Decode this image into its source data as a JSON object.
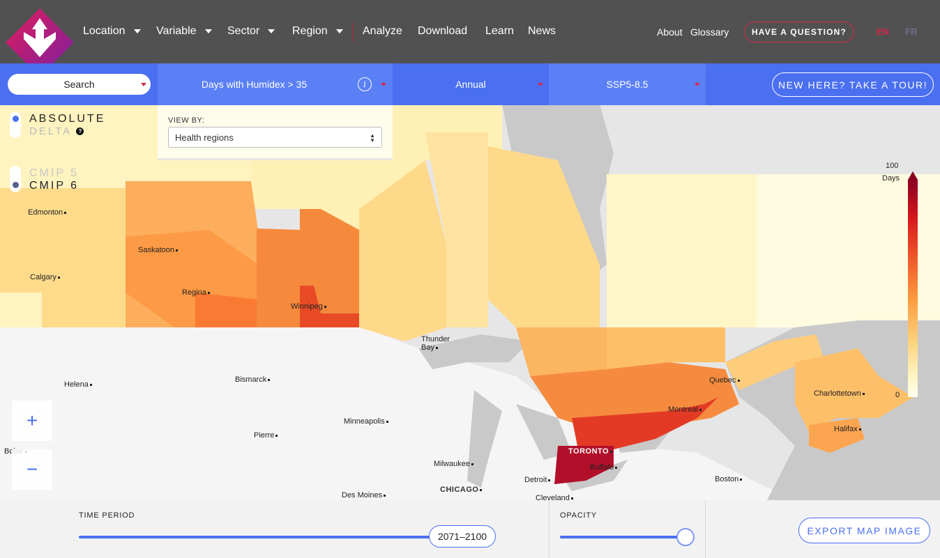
{
  "nav": {
    "items": [
      {
        "label": "Location",
        "dropdown": true
      },
      {
        "label": "Variable",
        "dropdown": true
      },
      {
        "label": "Sector",
        "dropdown": true
      },
      {
        "label": "Region",
        "dropdown": true
      },
      {
        "label": "Analyze",
        "dropdown": false
      },
      {
        "label": "Download",
        "dropdown": false
      },
      {
        "label": "Learn",
        "dropdown": false
      },
      {
        "label": "News",
        "dropdown": false
      }
    ],
    "about": "About",
    "glossary": "Glossary",
    "question_button": "HAVE A QUESTION?",
    "lang_en": "EN",
    "lang_fr": "FR"
  },
  "controls": {
    "search": "Search",
    "variable": "Days with Humidex > 35",
    "frequency": "Annual",
    "scenario": "SSP5-8.5",
    "tour_button": "NEW HERE? TAKE A TOUR!"
  },
  "toggles": {
    "absolute": "ABSOLUTE",
    "delta": "DELTA",
    "cmip5": "CMIP 5",
    "cmip6": "CMIP 6",
    "help_icon": "?"
  },
  "viewby": {
    "label": "VIEW BY:",
    "selected": "Health regions"
  },
  "legend": {
    "max": "100",
    "unit": "Days",
    "min": "0"
  },
  "zoom": {
    "in": "+",
    "out": "−"
  },
  "cities": [
    {
      "name": "Edmonton"
    },
    {
      "name": "Saskatoon"
    },
    {
      "name": "Calgary"
    },
    {
      "name": "Regina"
    },
    {
      "name": "Winnipeg"
    },
    {
      "name": "Thunder Bay"
    },
    {
      "name": "Helena"
    },
    {
      "name": "Bismarck"
    },
    {
      "name": "Pierre"
    },
    {
      "name": "Minneapolis"
    },
    {
      "name": "Milwaukee"
    },
    {
      "name": "Des Moines"
    },
    {
      "name": "CHICAGO"
    },
    {
      "name": "Detroit"
    },
    {
      "name": "Cleveland"
    },
    {
      "name": "TORONTO"
    },
    {
      "name": "Buffalo"
    },
    {
      "name": "Montreal"
    },
    {
      "name": "Quebec"
    },
    {
      "name": "Boston"
    },
    {
      "name": "Charlottetown"
    },
    {
      "name": "Halifax"
    },
    {
      "name": "Boise"
    }
  ],
  "bottom": {
    "time_period_label": "TIME PERIOD",
    "time_period_value": "2071–2100",
    "time_period_fraction": 1.0,
    "opacity_label": "OPACITY",
    "opacity_fraction": 1.0,
    "export_button": "EXPORT MAP IMAGE"
  },
  "colors": {
    "accent_blue": "#4a6ff0",
    "brand_red": "#d4284b",
    "nav_bg": "#3c3c3c"
  }
}
